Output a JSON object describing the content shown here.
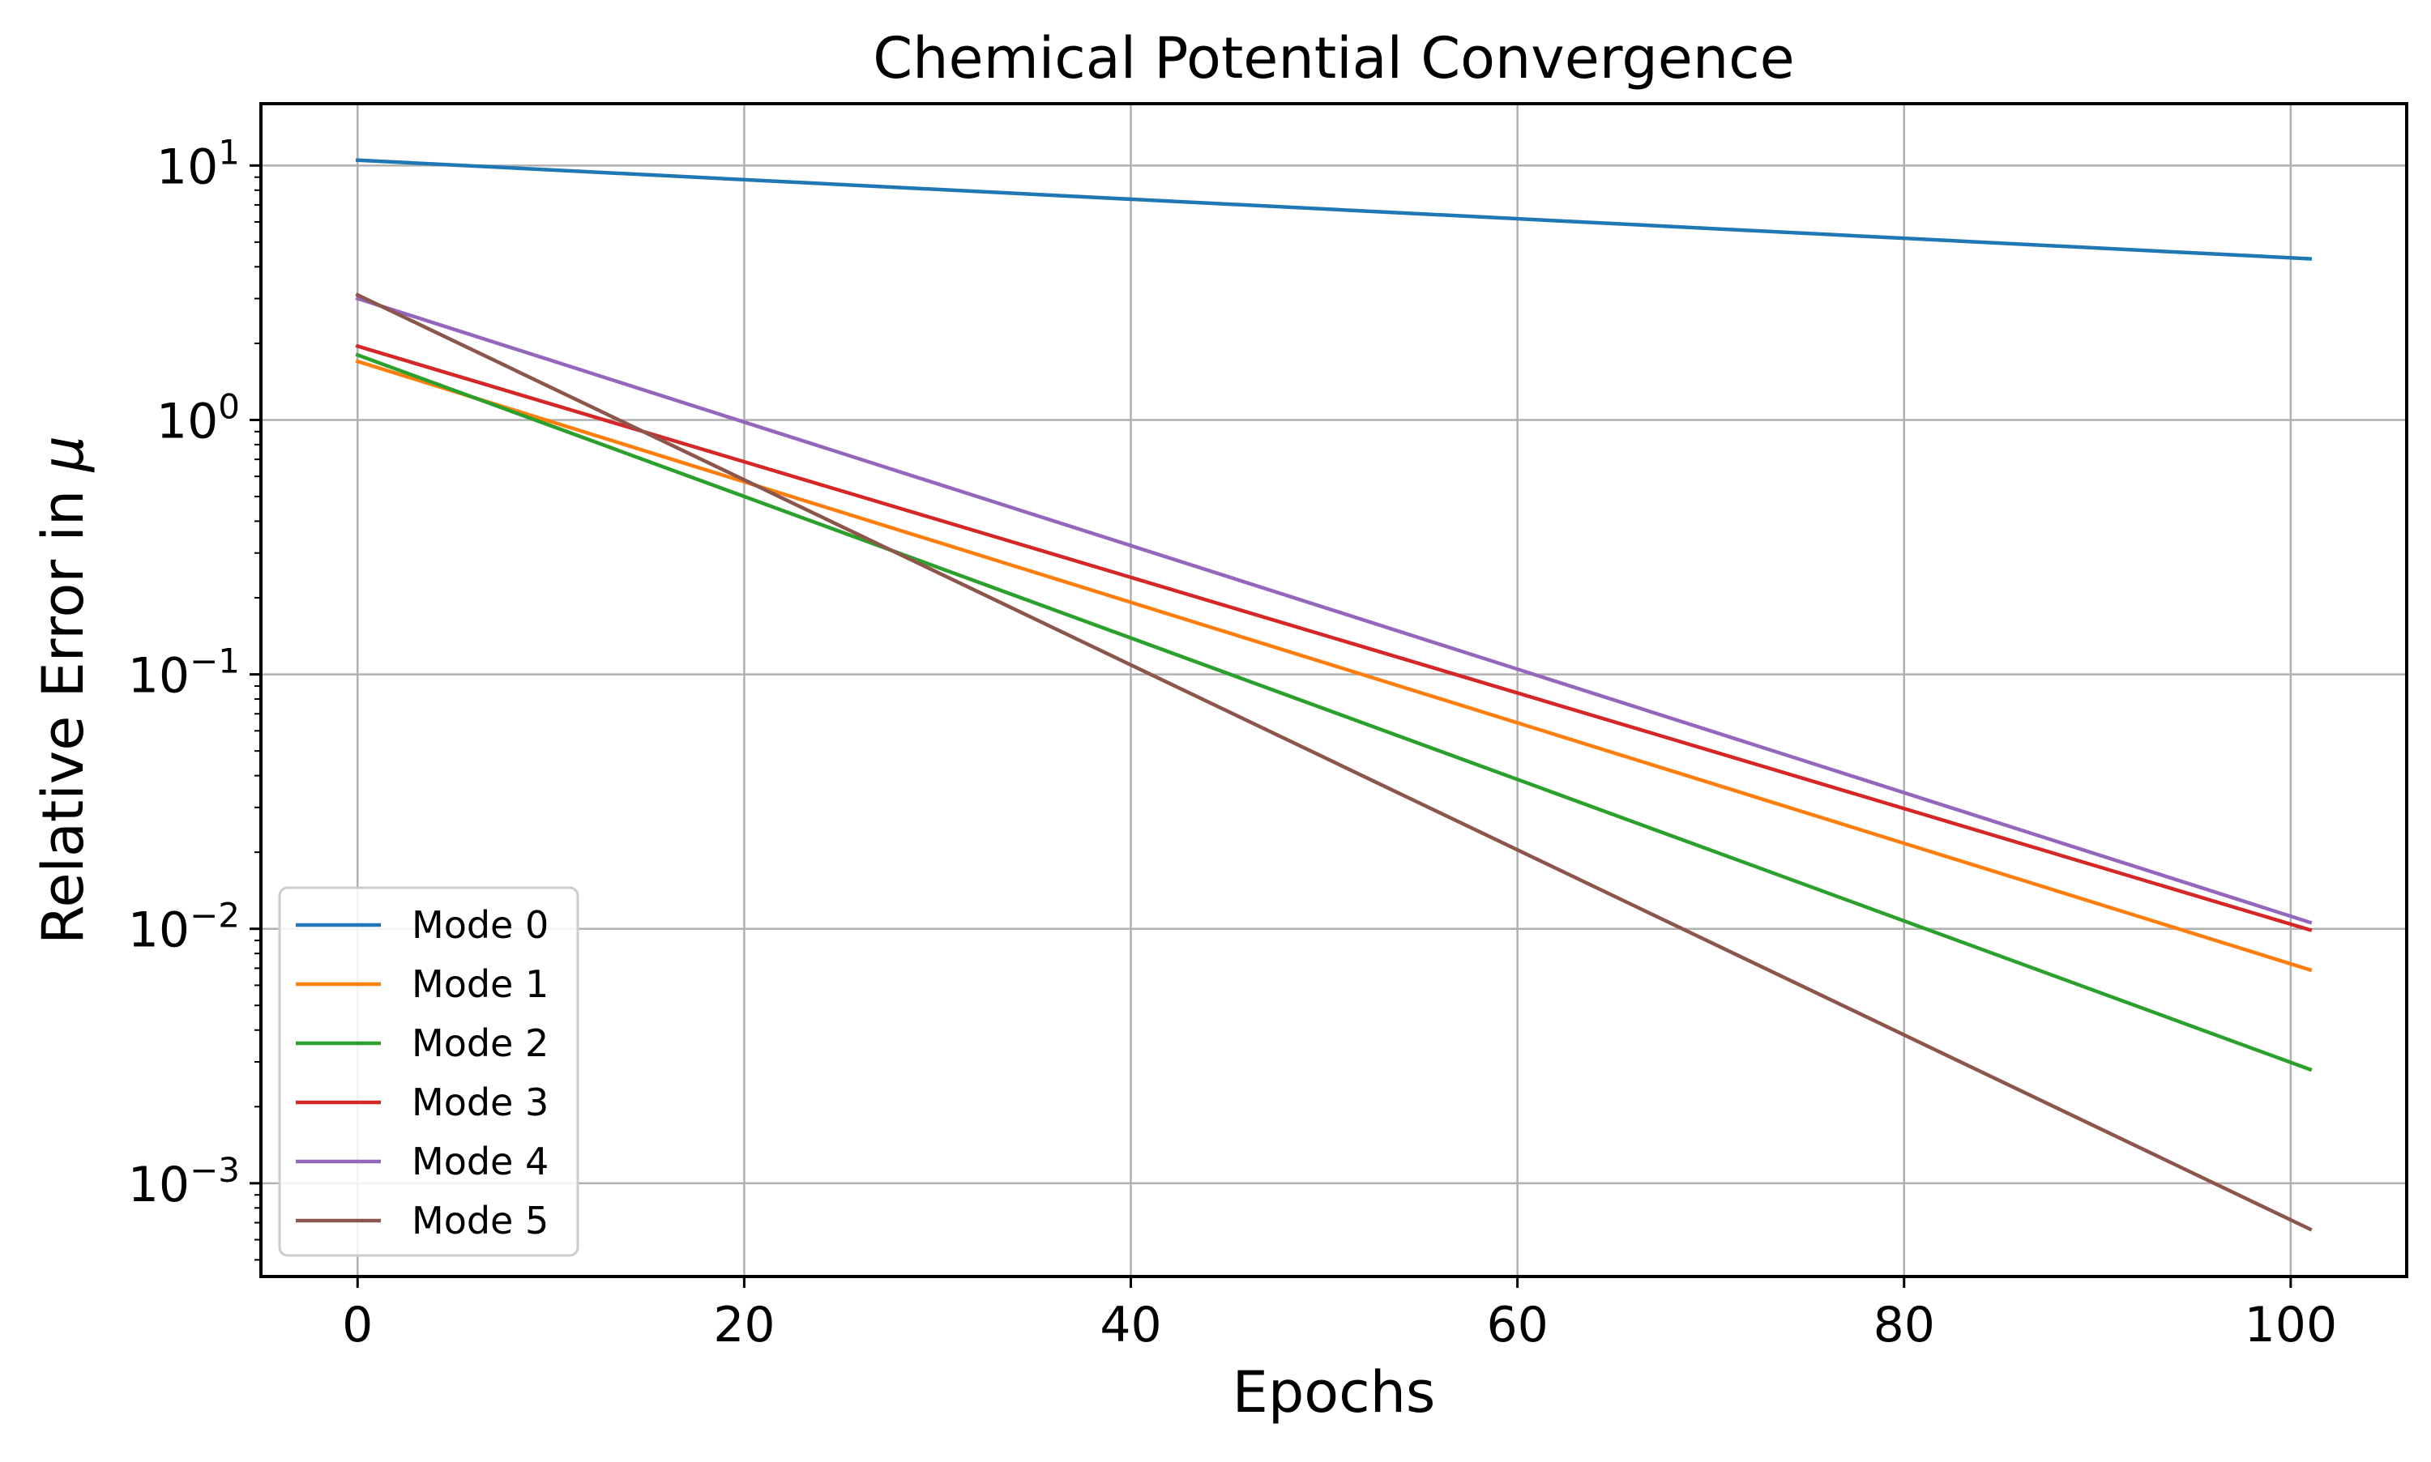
{
  "chart_data": {
    "type": "line",
    "title": "Chemical Potential Convergence",
    "xlabel": "Epochs",
    "ylabel_prefix": "Relative Error in ",
    "ylabel_symbol": "μ",
    "yscale": "log",
    "xlim": [
      -5,
      106
    ],
    "ylim": [
      0.00043,
      17.5
    ],
    "grid": true,
    "legend_position": "lower-left",
    "x_ticks": [
      {
        "value": 0,
        "label": "0"
      },
      {
        "value": 20,
        "label": "20"
      },
      {
        "value": 40,
        "label": "40"
      },
      {
        "value": 60,
        "label": "60"
      },
      {
        "value": 80,
        "label": "80"
      },
      {
        "value": 100,
        "label": "100"
      }
    ],
    "y_ticks": [
      {
        "value": 10,
        "base": "10",
        "exp": "1"
      },
      {
        "value": 1,
        "base": "10",
        "exp": "0"
      },
      {
        "value": 0.1,
        "base": "10",
        "exp": "−1"
      },
      {
        "value": 0.01,
        "base": "10",
        "exp": "−2"
      },
      {
        "value": 0.001,
        "base": "10",
        "exp": "−3"
      }
    ],
    "series": [
      {
        "name": "Mode 0",
        "color": "#1f77b4",
        "x": [
          0,
          101
        ],
        "y": [
          10.5,
          4.3
        ]
      },
      {
        "name": "Mode 1",
        "color": "#ff7f0e",
        "x": [
          0,
          101
        ],
        "y": [
          1.7,
          0.0069
        ]
      },
      {
        "name": "Mode 2",
        "color": "#2ca02c",
        "x": [
          0,
          101
        ],
        "y": [
          1.8,
          0.0028
        ]
      },
      {
        "name": "Mode 3",
        "color": "#d62728",
        "x": [
          0,
          101
        ],
        "y": [
          1.95,
          0.0099
        ]
      },
      {
        "name": "Mode 4",
        "color": "#9467bd",
        "x": [
          0,
          101
        ],
        "y": [
          3.0,
          0.0106
        ]
      },
      {
        "name": "Mode 5",
        "color": "#8c564b",
        "x": [
          0,
          101
        ],
        "y": [
          3.1,
          0.00066
        ]
      }
    ]
  }
}
